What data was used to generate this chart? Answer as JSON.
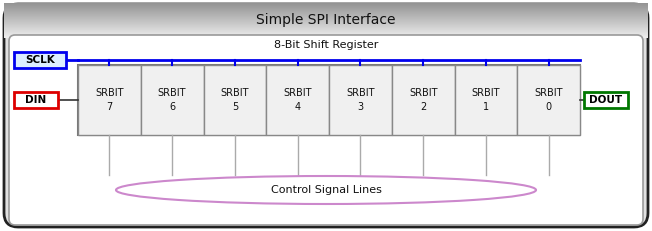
{
  "title": "Simple SPI Interface",
  "shift_register_label": "8-Bit Shift Register",
  "control_label": "Control Signal Lines",
  "sclk_label": "SCLK",
  "din_label": "DIN",
  "dout_label": "DOUT",
  "srbit_labels": [
    "SRBIT\n7",
    "SRBIT\n6",
    "SRBIT\n5",
    "SRBIT\n4",
    "SRBIT\n3",
    "SRBIT\n2",
    "SRBIT\n1",
    "SRBIT\n0"
  ],
  "outer_bg": "#e0e0e0",
  "outer_border": "#222222",
  "inner_bg": "#ffffff",
  "sclk_line_color": "#0000ee",
  "sclk_box_border": "#0000ee",
  "din_box_border": "#dd0000",
  "dout_box_border": "#007700",
  "srbit_box_fill": "#f0f0f0",
  "srbit_box_border": "#888888",
  "ellipse_color": "#cc88cc",
  "control_line_color": "#aaaaaa",
  "text_color": "#111111",
  "title_gradient_top": "#aaaaaa",
  "title_gradient_bot": "#eeeeee"
}
